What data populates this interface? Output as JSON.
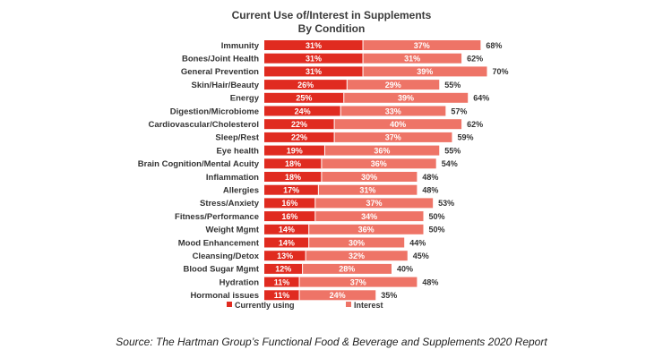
{
  "chart_data": {
    "type": "bar",
    "orientation": "horizontal",
    "stacked": true,
    "title": "Current Use of/Interest in Supplements",
    "subtitle": "By Condition",
    "categories": [
      "Immunity",
      "Bones/Joint Health",
      "General Prevention",
      "Skin/Hair/Beauty",
      "Energy",
      "Digestion/Microbiome",
      "Cardiovascular/Cholesterol",
      "Sleep/Rest",
      "Eye health",
      "Brain Cognition/Mental Acuity",
      "Inflammation",
      "Allergies",
      "Stress/Anxiety",
      "Fitness/Performance",
      "Weight Mgmt",
      "Mood Enhancement",
      "Cleansing/Detox",
      "Blood Sugar Mgmt",
      "Hydration",
      "Hormonal issues"
    ],
    "series": [
      {
        "name": "Currently using",
        "color": "#e02b20",
        "values": [
          31,
          31,
          31,
          26,
          25,
          24,
          22,
          22,
          19,
          18,
          18,
          17,
          16,
          16,
          14,
          14,
          13,
          12,
          11,
          11
        ],
        "labels": [
          "31%",
          "31%",
          "31%",
          "26%",
          "25%",
          "24%",
          "22%",
          "22%",
          "19%",
          "18%",
          "18%",
          "17%",
          "16%",
          "16%",
          "14%",
          "14%",
          "13%",
          "12%",
          "11%",
          "11%"
        ]
      },
      {
        "name": "Interest",
        "color": "#ee7467",
        "values": [
          37,
          31,
          39,
          29,
          39,
          33,
          40,
          37,
          36,
          36,
          30,
          31,
          37,
          34,
          36,
          30,
          32,
          28,
          37,
          24
        ],
        "labels": [
          "37%",
          "31%",
          "39%",
          "29%",
          "39%",
          "33%",
          "40%",
          "37%",
          "36%",
          "36%",
          "30%",
          "31%",
          "37%",
          "34%",
          "36%",
          "30%",
          "32%",
          "28%",
          "37%",
          "24%"
        ]
      }
    ],
    "totals": [
      "68%",
      "62%",
      "70%",
      "55%",
      "64%",
      "57%",
      "62%",
      "59%",
      "55%",
      "54%",
      "48%",
      "48%",
      "53%",
      "50%",
      "50%",
      "44%",
      "45%",
      "40%",
      "48%",
      "35%"
    ],
    "xlim": [
      0,
      70
    ],
    "grid": false,
    "legend_position": "bottom"
  },
  "source": "Source: The Hartman Group’s Functional Food & Beverage and Supplements 2020 Report"
}
